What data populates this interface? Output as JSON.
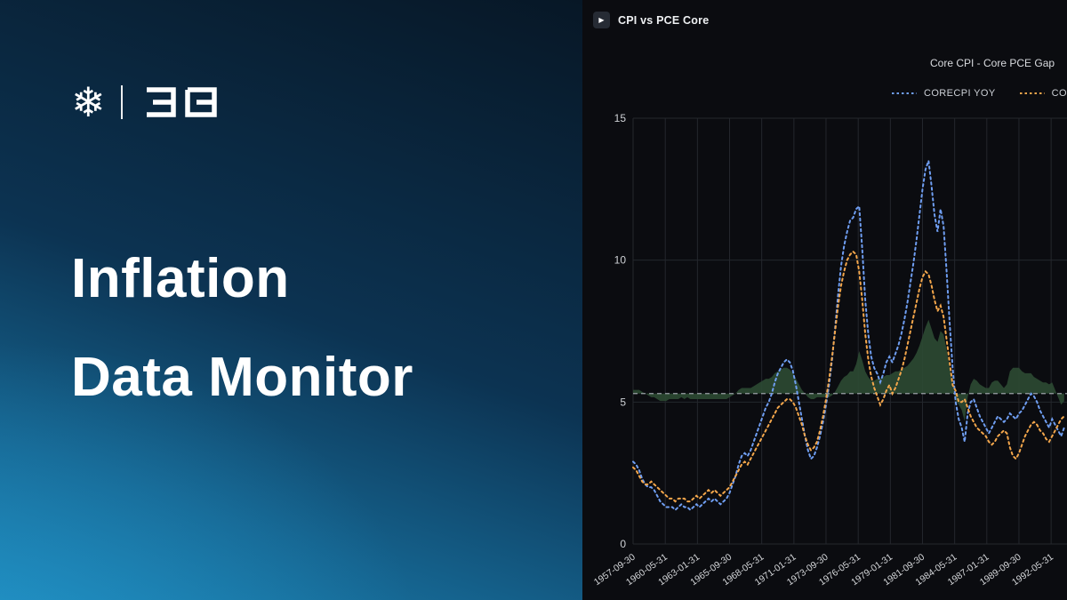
{
  "brand": {
    "snowflake_glyph": "❄"
  },
  "hero": {
    "title_line1": "Inflation",
    "title_line2": "Data Monitor"
  },
  "chart_header": {
    "window_title": "CPI vs PCE Core",
    "play_icon": "▶"
  },
  "chart_data": {
    "type": "line",
    "title": "Core CPI - Core PCE Gap",
    "xlabel": "",
    "ylabel": "",
    "grid": true,
    "legend_position": "top-right",
    "x_start": 1957.75,
    "x_step": 0.25,
    "x_axis": {
      "rotation": -35,
      "tick_labels": [
        "1957-09-30",
        "1960-05-31",
        "1963-01-31",
        "1965-09-30",
        "1968-05-31",
        "1971-01-31",
        "1973-09-30",
        "1976-05-31",
        "1979-01-31",
        "1981-09-30",
        "1984-05-31",
        "1987-01-31",
        "1989-09-30",
        "1992-05-31"
      ]
    },
    "y_axis": {
      "ticks": [
        0,
        5,
        10,
        15
      ],
      "range": [
        0,
        15
      ]
    },
    "baseline": {
      "value_display": 5.3,
      "style": "dashed",
      "color": "#9aa0a6"
    },
    "gap_fill": {
      "label": "Core CPI - Core PCE Gap",
      "derived_from": "CORECPI YOY minus COREPCE YOY",
      "baseline_display": 5.3,
      "display_scale": 0.65,
      "color": "#2c4a33"
    },
    "series": [
      {
        "name": "CORECPI YOY",
        "color": "#6f9ef2",
        "style": "dotted",
        "values": [
          2.9,
          2.8,
          2.6,
          2.3,
          2.1,
          2.0,
          2.0,
          1.9,
          1.7,
          1.5,
          1.4,
          1.3,
          1.3,
          1.3,
          1.2,
          1.3,
          1.4,
          1.3,
          1.3,
          1.2,
          1.3,
          1.4,
          1.3,
          1.4,
          1.5,
          1.6,
          1.5,
          1.6,
          1.5,
          1.4,
          1.5,
          1.6,
          1.8,
          2.1,
          2.4,
          2.8,
          3.1,
          3.2,
          3.1,
          3.3,
          3.6,
          3.9,
          4.2,
          4.5,
          4.8,
          5.0,
          5.3,
          5.7,
          6.0,
          6.2,
          6.4,
          6.5,
          6.4,
          6.1,
          5.6,
          5.0,
          4.4,
          3.8,
          3.3,
          3.0,
          3.1,
          3.4,
          3.8,
          4.3,
          4.9,
          5.6,
          6.5,
          7.6,
          8.8,
          9.8,
          10.5,
          11.0,
          11.4,
          11.5,
          11.8,
          11.9,
          10.4,
          8.6,
          7.4,
          6.6,
          6.2,
          6.0,
          5.7,
          6.0,
          6.4,
          6.6,
          6.4,
          6.7,
          7.0,
          7.4,
          7.9,
          8.5,
          9.2,
          9.9,
          10.7,
          11.6,
          12.5,
          13.2,
          13.5,
          12.6,
          11.6,
          11.0,
          11.8,
          11.2,
          9.6,
          7.8,
          6.2,
          5.0,
          4.4,
          4.1,
          3.6,
          4.6,
          5.0,
          5.1,
          4.8,
          4.5,
          4.3,
          4.1,
          3.9,
          4.1,
          4.3,
          4.5,
          4.4,
          4.3,
          4.4,
          4.6,
          4.5,
          4.4,
          4.6,
          4.7,
          4.9,
          5.1,
          5.3,
          5.2,
          5.0,
          4.7,
          4.5,
          4.3,
          4.1,
          4.4,
          4.2,
          4.0,
          3.8,
          4.1
        ]
      },
      {
        "name": "COREPCE YOY",
        "color": "#f3a64b",
        "style": "dotted",
        "values": [
          2.7,
          2.6,
          2.4,
          2.2,
          2.1,
          2.1,
          2.2,
          2.1,
          2.0,
          1.9,
          1.8,
          1.7,
          1.6,
          1.6,
          1.5,
          1.6,
          1.6,
          1.6,
          1.5,
          1.5,
          1.6,
          1.7,
          1.6,
          1.7,
          1.8,
          1.9,
          1.8,
          1.9,
          1.8,
          1.7,
          1.8,
          1.9,
          2.0,
          2.2,
          2.4,
          2.6,
          2.8,
          2.9,
          2.8,
          3.0,
          3.2,
          3.4,
          3.6,
          3.8,
          4.0,
          4.2,
          4.4,
          4.6,
          4.8,
          4.9,
          5.0,
          5.1,
          5.1,
          5.0,
          4.8,
          4.5,
          4.2,
          3.8,
          3.5,
          3.3,
          3.4,
          3.6,
          4.0,
          4.5,
          5.1,
          5.8,
          6.6,
          7.5,
          8.4,
          9.1,
          9.6,
          10.0,
          10.2,
          10.3,
          10.2,
          9.6,
          8.6,
          7.4,
          6.5,
          5.9,
          5.5,
          5.2,
          4.9,
          5.1,
          5.4,
          5.6,
          5.3,
          5.5,
          5.8,
          6.1,
          6.5,
          7.0,
          7.5,
          8.0,
          8.5,
          9.0,
          9.4,
          9.6,
          9.5,
          9.1,
          8.6,
          8.2,
          8.4,
          8.0,
          7.2,
          6.4,
          5.6,
          5.4,
          5.0,
          5.0,
          5.1,
          4.8,
          4.5,
          4.3,
          4.1,
          4.0,
          3.9,
          3.8,
          3.6,
          3.5,
          3.6,
          3.8,
          3.9,
          4.0,
          3.9,
          3.4,
          3.1,
          3.0,
          3.2,
          3.5,
          3.8,
          4.0,
          4.2,
          4.3,
          4.2,
          4.0,
          3.9,
          3.7,
          3.6,
          3.8,
          4.0,
          4.2,
          4.4,
          4.5
        ]
      }
    ]
  }
}
